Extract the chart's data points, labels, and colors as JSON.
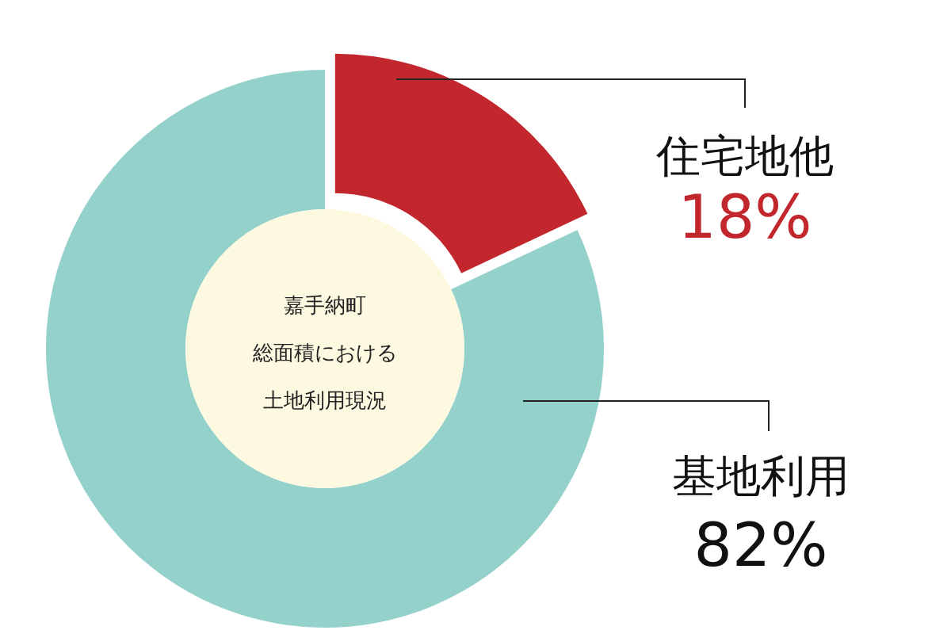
{
  "chart_data": {
    "type": "donut",
    "categories": [
      "住宅地他",
      "基地利用"
    ],
    "values": [
      18,
      82
    ],
    "colors": [
      "#c1272d",
      "#94d1cb"
    ],
    "value_labels": [
      "18%",
      "82%"
    ],
    "annotations": [
      "嘉手納町",
      "総面積における",
      "土地利用現況"
    ]
  }
}
